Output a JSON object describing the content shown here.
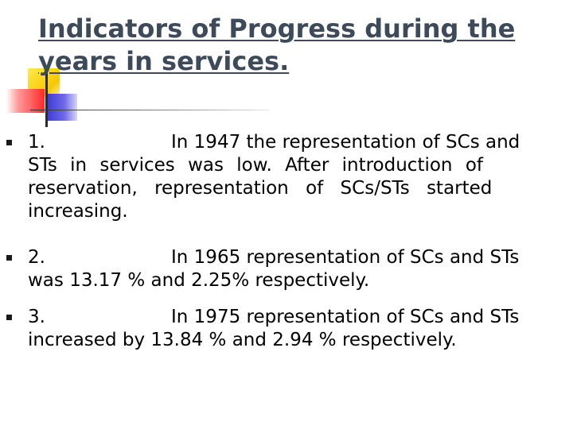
{
  "slide": {
    "title_line1": "Indicators of Progress during the",
    "title_line2": "years in services.",
    "bullets": [
      {
        "number": "1.",
        "lines": [
          "In 1947 the representation of SCs and",
          "STs in services was low. After introduction of",
          "reservation, representation of SCs/STs started",
          "increasing."
        ]
      },
      {
        "number": "2.",
        "lines": [
          "In 1965 representation of SCs and STs",
          "was 13.17 % and 2.25% respectively."
        ]
      },
      {
        "number": "3.",
        "lines": [
          "In  1975 representation of SCs and STs",
          "increased by 13.84  % and 2.94 % respectively."
        ]
      }
    ]
  }
}
